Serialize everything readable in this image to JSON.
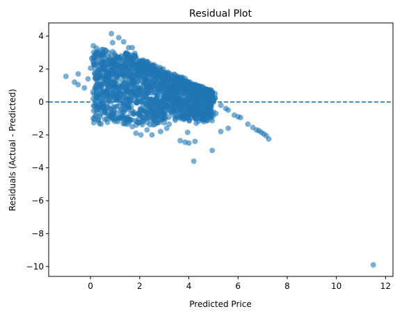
{
  "chart_data": {
    "type": "scatter",
    "title": "Residual Plot",
    "xlabel": "Predicted Price",
    "ylabel": "Residuals (Actual - Predicted)",
    "xlim": [
      -1.7,
      12.3
    ],
    "ylim": [
      -10.6,
      4.8
    ],
    "xticks": [
      0,
      2,
      4,
      6,
      8,
      10,
      12
    ],
    "yticks": [
      -10,
      -8,
      -6,
      -4,
      -2,
      0,
      2,
      4
    ],
    "tick_labels_x": [
      "0",
      "2",
      "4",
      "6",
      "8",
      "10",
      "12"
    ],
    "tick_labels_y": [
      "−10",
      "−8",
      "−6",
      "−4",
      "−2",
      "0",
      "2",
      "4"
    ],
    "reference_line": {
      "y": 0,
      "style": "dashed",
      "color": "#1f77b4"
    },
    "grid": false,
    "point_color": "#1f77b4",
    "point_alpha": 0.6,
    "cluster_description": "dense cloud of points roughly between x 0 and 5, residual -2 to 3, with a diagonal upper boundary",
    "points": [
      [
        -1.0,
        1.55
      ],
      [
        -0.65,
        1.2
      ],
      [
        -0.5,
        1.05
      ],
      [
        -0.5,
        1.7
      ],
      [
        -0.25,
        0.85
      ],
      [
        -0.1,
        1.4
      ],
      [
        0.0,
        2.05
      ],
      [
        0.05,
        2.65
      ],
      [
        0.1,
        0.6
      ],
      [
        0.2,
        1.5
      ],
      [
        0.3,
        0.3
      ],
      [
        0.5,
        0.6
      ],
      [
        0.6,
        1.1
      ],
      [
        0.75,
        2.25
      ],
      [
        0.85,
        2.0
      ],
      [
        0.85,
        4.15
      ],
      [
        0.9,
        3.05
      ],
      [
        0.9,
        3.6
      ],
      [
        1.0,
        2.6
      ],
      [
        1.1,
        2.7
      ],
      [
        1.15,
        3.9
      ],
      [
        1.25,
        2.8
      ],
      [
        1.35,
        3.65
      ],
      [
        1.45,
        2.9
      ],
      [
        1.55,
        3.3
      ],
      [
        1.6,
        2.2
      ],
      [
        1.7,
        3.3
      ],
      [
        1.75,
        2.05
      ],
      [
        1.8,
        2.95
      ],
      [
        2.0,
        2.5
      ],
      [
        2.2,
        2.3
      ],
      [
        2.5,
        2.1
      ],
      [
        2.8,
        1.85
      ],
      [
        3.1,
        1.6
      ],
      [
        3.4,
        1.35
      ],
      [
        3.8,
        1.0
      ],
      [
        4.2,
        0.7
      ],
      [
        4.6,
        0.4
      ],
      [
        5.0,
        0.1
      ],
      [
        5.3,
        -0.2
      ],
      [
        5.6,
        -0.5
      ],
      [
        5.85,
        -0.8
      ],
      [
        6.0,
        -0.9
      ],
      [
        6.1,
        -0.95
      ],
      [
        6.4,
        -1.35
      ],
      [
        6.6,
        -1.55
      ],
      [
        6.75,
        -1.7
      ],
      [
        6.85,
        -1.75
      ],
      [
        6.95,
        -1.85
      ],
      [
        7.05,
        -1.95
      ],
      [
        7.15,
        -2.05
      ],
      [
        7.25,
        -2.25
      ],
      [
        1.4,
        -1.25
      ],
      [
        1.7,
        -1.5
      ],
      [
        1.9,
        -1.2
      ],
      [
        2.3,
        -1.7
      ],
      [
        2.5,
        -2.0
      ],
      [
        2.55,
        -1.4
      ],
      [
        2.85,
        -1.8
      ],
      [
        3.1,
        -1.6
      ],
      [
        3.2,
        -1.35
      ],
      [
        3.45,
        -1.0
      ],
      [
        3.65,
        -2.35
      ],
      [
        3.85,
        -2.45
      ],
      [
        4.0,
        -2.5
      ],
      [
        4.25,
        -2.4
      ],
      [
        4.2,
        -3.6
      ],
      [
        3.95,
        -1.85
      ],
      [
        4.3,
        -1.3
      ],
      [
        4.6,
        -1.2
      ],
      [
        4.95,
        -2.95
      ],
      [
        5.3,
        -1.8
      ],
      [
        5.6,
        -1.6
      ],
      [
        2.05,
        -2.0
      ],
      [
        1.85,
        -1.9
      ],
      [
        2.7,
        -1.25
      ],
      [
        0.3,
        -0.35
      ],
      [
        0.6,
        -0.55
      ],
      [
        0.9,
        -0.75
      ],
      [
        1.2,
        -0.95
      ],
      [
        1.5,
        -1.0
      ],
      [
        2.0,
        -0.8
      ],
      [
        2.4,
        -0.6
      ],
      [
        2.9,
        -0.9
      ],
      [
        3.3,
        -0.6
      ],
      [
        3.7,
        -0.35
      ],
      [
        4.1,
        -0.2
      ],
      [
        4.4,
        -0.6
      ],
      [
        4.8,
        -0.5
      ],
      [
        5.1,
        -0.7
      ],
      [
        5.5,
        -0.4
      ],
      [
        0.2,
        0.1
      ],
      [
        0.4,
        0.4
      ],
      [
        0.7,
        0.2
      ],
      [
        1.0,
        0.5
      ],
      [
        1.3,
        0.9
      ],
      [
        1.6,
        1.2
      ],
      [
        1.9,
        1.6
      ],
      [
        2.2,
        1.4
      ],
      [
        2.5,
        1.1
      ],
      [
        2.8,
        0.8
      ],
      [
        3.1,
        0.4
      ],
      [
        3.4,
        0.1
      ],
      [
        3.7,
        0.5
      ],
      [
        4.0,
        0.3
      ],
      [
        4.3,
        0.0
      ],
      [
        11.5,
        -9.9
      ]
    ]
  }
}
